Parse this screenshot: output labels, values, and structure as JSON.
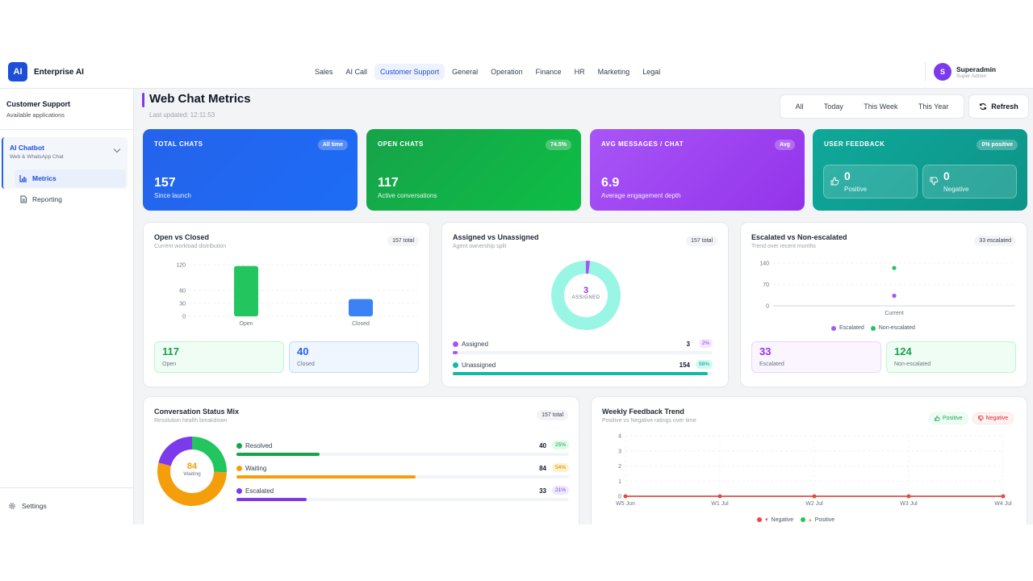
{
  "brand": {
    "logo": "AI",
    "name": "Enterprise AI"
  },
  "nav": [
    "Sales",
    "AI Call",
    "Customer Support",
    "General",
    "Operation",
    "Finance",
    "HR",
    "Marketing",
    "Legal"
  ],
  "user": {
    "initial": "S",
    "name": "Superadmin",
    "role": "Super Admin"
  },
  "sidebar": {
    "title": "Customer Support",
    "subtitle": "Available applications",
    "group": {
      "title": "AI Chatbot",
      "subtitle": "Web & WhatsApp Chat"
    },
    "items": [
      {
        "label": "Metrics"
      },
      {
        "label": "Reporting"
      }
    ],
    "settings": "Settings"
  },
  "page": {
    "title": "Web Chat Metrics",
    "updated": "Last updated: 12:11:53"
  },
  "filters": [
    "All",
    "Today",
    "This Week",
    "This Year"
  ],
  "refresh": "Refresh",
  "kpis": {
    "total": {
      "label": "TOTAL CHATS",
      "badge": "All time",
      "value": "157",
      "sub": "Since launch",
      "color": "#2563eb"
    },
    "open": {
      "label": "OPEN CHATS",
      "badge": "74.5%",
      "value": "117",
      "sub": "Active conversations",
      "color": "#16a34a"
    },
    "avg": {
      "label": "AVG MESSAGES / CHAT",
      "badge": "Avg",
      "value": "6.9",
      "sub": "Average engagement depth",
      "color": "#9333ea"
    },
    "feedback": {
      "label": "USER FEEDBACK",
      "badge": "0% positive",
      "positive": "0",
      "positive_label": "Positive",
      "negative": "0",
      "negative_label": "Negative",
      "color": "#0d9488"
    }
  },
  "open_closed": {
    "title": "Open vs Closed",
    "sub": "Current workload distribution",
    "pill": "157 total",
    "open": "117",
    "open_label": "Open",
    "closed": "40",
    "closed_label": "Closed"
  },
  "assigned": {
    "title": "Assigned vs Unassigned",
    "sub": "Agent ownership split",
    "pill": "157 total",
    "center_value": "3",
    "center_label": "ASSIGNED",
    "rows": [
      {
        "name": "Assigned",
        "count": "3",
        "pct": "2%",
        "fraction": 0.02,
        "color": "#a855f7"
      },
      {
        "name": "Unassigned",
        "count": "154",
        "pct": "98%",
        "fraction": 0.98,
        "color": "#14b8a6"
      }
    ]
  },
  "escalated": {
    "title": "Escalated vs Non-escalated",
    "sub": "Trend over recent months",
    "pill": "33 escalated",
    "legend": [
      "Escalated",
      "Non-escalated"
    ],
    "escalated": "33",
    "escalated_label": "Escalated",
    "non_escalated": "124",
    "non_escalated_label": "Non-escalated"
  },
  "status_mix": {
    "title": "Conversation Status Mix",
    "sub": "Resolution health breakdown",
    "pill": "157 total",
    "center_value": "84",
    "center_label": "Waiting",
    "rows": [
      {
        "name": "Resolved",
        "count": "40",
        "pct": "25%",
        "fraction": 0.25,
        "color": "#16a34a"
      },
      {
        "name": "Waiting",
        "count": "84",
        "pct": "54%",
        "fraction": 0.54,
        "color": "#f59e0b"
      },
      {
        "name": "Escalated",
        "count": "33",
        "pct": "21%",
        "fraction": 0.21,
        "color": "#7c3aed"
      }
    ]
  },
  "weekly": {
    "title": "Weekly Feedback Trend",
    "sub": "Positive vs Negative ratings over time",
    "positive_btn": "Positive",
    "negative_btn": "Negative",
    "legend_negative": "Negative",
    "legend_positive": "Positive"
  },
  "chart_data": [
    {
      "type": "bar",
      "title": "Open vs Closed",
      "categories": [
        "Open",
        "Closed"
      ],
      "values": [
        117,
        40
      ],
      "yticks": [
        0,
        30,
        60,
        120
      ],
      "ylim": [
        0,
        120
      ],
      "colors": [
        "#22c55e",
        "#3b82f6"
      ]
    },
    {
      "type": "pie",
      "title": "Assigned vs Unassigned",
      "labels": [
        "Assigned",
        "Unassigned"
      ],
      "values": [
        3,
        154
      ],
      "colors": [
        "#a855f7",
        "#99f6e4"
      ]
    },
    {
      "type": "scatter",
      "title": "Escalated vs Non-escalated",
      "x": [
        "Current"
      ],
      "series": [
        {
          "name": "Escalated",
          "values": [
            33
          ],
          "color": "#a855f7"
        },
        {
          "name": "Non-escalated",
          "values": [
            124
          ],
          "color": "#22c55e"
        }
      ],
      "yticks": [
        0,
        70,
        140
      ],
      "ylim": [
        0,
        140
      ]
    },
    {
      "type": "pie",
      "title": "Conversation Status Mix",
      "labels": [
        "Resolved",
        "Waiting",
        "Escalated"
      ],
      "values": [
        40,
        84,
        33
      ],
      "colors": [
        "#22c55e",
        "#f59e0b",
        "#7c3aed"
      ]
    },
    {
      "type": "line",
      "title": "Weekly Feedback Trend",
      "x": [
        "W5 Jun",
        "W1 Jul",
        "W2 Jul",
        "W3 Jul",
        "W4 Jul"
      ],
      "series": [
        {
          "name": "Negative",
          "values": [
            0,
            0,
            0,
            0,
            0
          ],
          "color": "#ef4444"
        },
        {
          "name": "Positive",
          "values": [
            0,
            0,
            0,
            0,
            0
          ],
          "color": "#22c55e"
        }
      ],
      "yticks": [
        0,
        1,
        2,
        3,
        4
      ],
      "ylim": [
        0,
        4
      ]
    }
  ]
}
